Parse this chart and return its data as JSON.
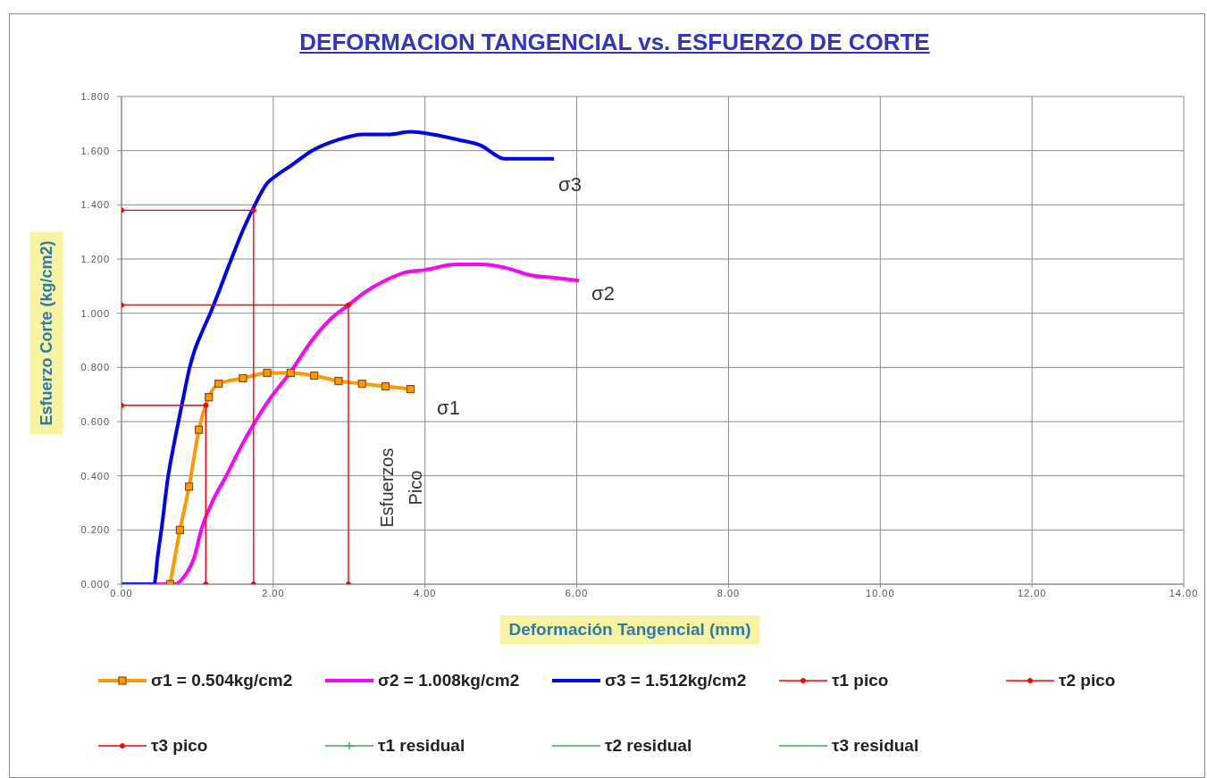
{
  "chart_data": {
    "type": "line",
    "title": "DEFORMACION TANGENCIAL vs. ESFUERZO DE CORTE",
    "xlabel": "Deformación Tangencial (mm)",
    "ylabel": "Esfuerzo Corte (kg/cm2)",
    "xlim": [
      0,
      14
    ],
    "xticks": [
      {
        "value": 0,
        "label": "0.00"
      },
      {
        "value": 2,
        "label": "2.00"
      },
      {
        "value": 4,
        "label": "4.00"
      },
      {
        "value": 6,
        "label": "6.00"
      },
      {
        "value": 8,
        "label": "8.00"
      },
      {
        "value": 10,
        "label": "10.00"
      },
      {
        "value": 12,
        "label": "12.00"
      },
      {
        "value": 14,
        "label": "14.00"
      }
    ],
    "ylim": [
      0,
      1.8
    ],
    "yticks": [
      {
        "value": 0,
        "label": "0.000"
      },
      {
        "value": 0.2,
        "label": "0.200"
      },
      {
        "value": 0.4,
        "label": "0.400"
      },
      {
        "value": 0.6,
        "label": "0.600"
      },
      {
        "value": 0.8,
        "label": "0.800"
      },
      {
        "value": 1,
        "label": "1.000"
      },
      {
        "value": 1.2,
        "label": "1.200"
      },
      {
        "value": 1.4,
        "label": "1.400"
      },
      {
        "value": 1.6,
        "label": "1.600"
      },
      {
        "value": 1.8,
        "label": "1.800"
      }
    ],
    "grid": true,
    "legend": "bottom",
    "line_style": "solid",
    "series": [
      {
        "name": "σ1 = 0.504kg/cm2",
        "color": "#ff9900",
        "marker": "square",
        "x": [
          0.64,
          0.77,
          0.89,
          1.02,
          1.15,
          1.28,
          1.6,
          1.92,
          2.23,
          2.54,
          2.86,
          3.17,
          3.48,
          3.81
        ],
        "values": [
          0,
          0.2,
          0.36,
          0.57,
          0.69,
          0.74,
          0.76,
          0.78,
          0.78,
          0.77,
          0.75,
          0.74,
          0.73,
          0.72
        ]
      },
      {
        "name": "σ2 = 1.008kg/cm2",
        "color": "#ff00ff",
        "marker": "none",
        "x": [
          0,
          0.7,
          0.83,
          0.96,
          1.05,
          1.19,
          1.38,
          1.56,
          1.72,
          1.97,
          2.22,
          2.51,
          2.76,
          2.99,
          3.22,
          3.47,
          3.73,
          4.0,
          4.4,
          4.75,
          5.03,
          5.4,
          5.74,
          6.03
        ],
        "values": [
          0,
          0,
          0.03,
          0.1,
          0.2,
          0.3,
          0.4,
          0.5,
          0.58,
          0.69,
          0.78,
          0.9,
          0.98,
          1.03,
          1.08,
          1.12,
          1.15,
          1.16,
          1.18,
          1.18,
          1.17,
          1.14,
          1.13,
          1.12
        ]
      },
      {
        "name": "σ3 = 1.512kg/cm2",
        "color": "#0000ff",
        "marker": "none",
        "x": [
          0,
          0.43,
          0.48,
          0.53,
          0.61,
          0.68,
          0.75,
          0.83,
          0.89,
          0.96,
          1.06,
          1.17,
          1.27,
          1.42,
          1.59,
          1.74,
          1.92,
          2.05,
          2.26,
          2.51,
          2.85,
          3.18,
          3.52,
          3.81,
          4.1,
          4.44,
          4.73,
          5.05,
          5.36,
          5.7
        ],
        "values": [
          0,
          0,
          0.11,
          0.21,
          0.39,
          0.5,
          0.6,
          0.71,
          0.79,
          0.86,
          0.93,
          1.0,
          1.07,
          1.18,
          1.3,
          1.39,
          1.48,
          1.51,
          1.55,
          1.6,
          1.64,
          1.66,
          1.66,
          1.67,
          1.66,
          1.64,
          1.62,
          1.57,
          1.57,
          1.57
        ]
      },
      {
        "name": "τ1 pico",
        "color": "#ff0000",
        "marker": "circle",
        "x": [
          0,
          1.11,
          1.11
        ],
        "values": [
          0.66,
          0.66,
          0
        ]
      },
      {
        "name": "τ2 pico",
        "color": "#ff0000",
        "marker": "circle",
        "x": [
          0,
          2.99,
          2.99
        ],
        "values": [
          1.03,
          1.03,
          0
        ]
      },
      {
        "name": "τ3 pico",
        "color": "#ff0000",
        "marker": "circle",
        "x": [
          0,
          1.74,
          1.74
        ],
        "values": [
          1.38,
          1.38,
          0
        ]
      },
      {
        "name": "τ1 residual",
        "color": "#33b04a",
        "marker": "cross",
        "values": [
          null
        ]
      },
      {
        "name": "τ2 residual",
        "color": "#33b04a",
        "values": [
          null
        ]
      },
      {
        "name": "τ3 residual",
        "color": "#33b04a",
        "values": [
          null
        ]
      }
    ],
    "annotations": [
      "σ1",
      "σ2",
      "σ3",
      "Esfuerzos\nPico"
    ]
  }
}
